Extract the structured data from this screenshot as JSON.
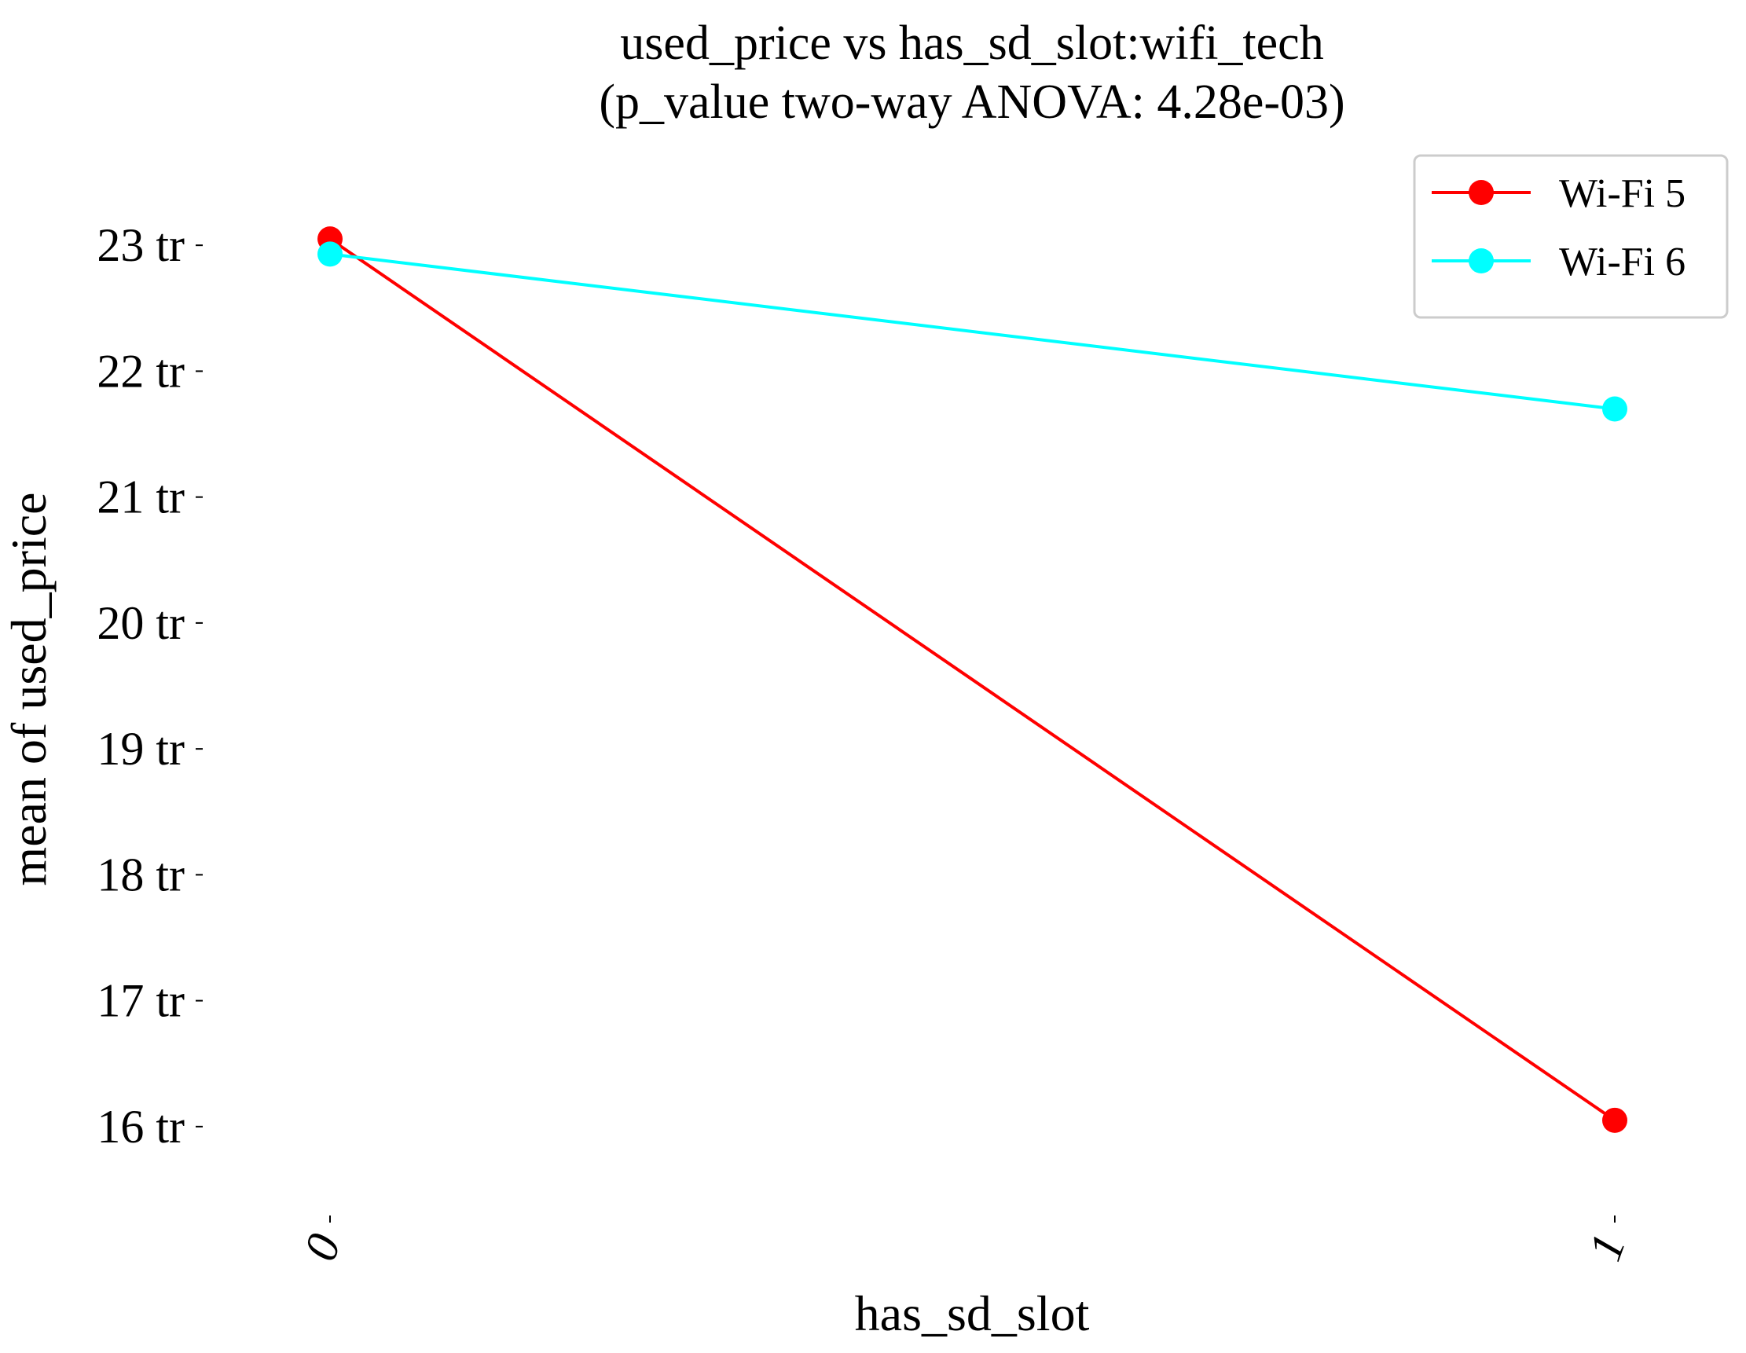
{
  "chart_data": {
    "type": "line",
    "title": "used_price vs has_sd_slot:wifi_tech",
    "subtitle": "(p_value two-way ANOVA: 4.28e-03)",
    "xlabel": "has_sd_slot",
    "ylabel": "mean of used_price",
    "categories": [
      "0",
      "1"
    ],
    "y_ticks": [
      16,
      17,
      18,
      19,
      20,
      21,
      22,
      23
    ],
    "y_tick_labels": [
      "16 tr",
      "17 tr",
      "18 tr",
      "19 tr",
      "20 tr",
      "21 tr",
      "22 tr",
      "23 tr"
    ],
    "ylim": [
      15.4,
      23.7
    ],
    "grid": false,
    "legend_position": "top-right",
    "series": [
      {
        "name": "Wi-Fi 5",
        "color": "#ff0000",
        "values": [
          23.05,
          16.05
        ]
      },
      {
        "name": "Wi-Fi 6",
        "color": "#00ffff",
        "values": [
          22.93,
          21.7
        ]
      }
    ]
  }
}
